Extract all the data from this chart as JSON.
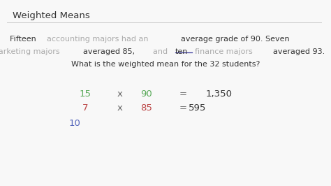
{
  "title": "Weighted Means",
  "bg_color": "#f8f8f8",
  "title_color": "#333333",
  "divider_color": "#cccccc",
  "para_line1": [
    {
      "text": "Fifteen ",
      "color": "#333333"
    },
    {
      "text": "accounting majors had an ",
      "color": "#aaaaaa"
    },
    {
      "text": "average grade of 90. Seven",
      "color": "#333333"
    }
  ],
  "para_line2": [
    {
      "text": "marketing majors ",
      "color": "#aaaaaa"
    },
    {
      "text": "averaged 85, ",
      "color": "#333333"
    },
    {
      "text": "and ",
      "color": "#aaaaaa"
    },
    {
      "text": "ten",
      "color": "#333333",
      "underline": true
    },
    {
      "text": " ",
      "color": "#333333"
    },
    {
      "text": "finance majors ",
      "color": "#aaaaaa"
    },
    {
      "text": "averaged 93.",
      "color": "#333333"
    }
  ],
  "para_line3": "What is the weighted mean for the 32 students?",
  "para_line3_color": "#333333",
  "row1_num1": "15",
  "row1_num1_color": "#5aaa5a",
  "row1_x": "x",
  "row1_x_color": "#666666",
  "row1_num2": "90",
  "row1_num2_color": "#5aaa5a",
  "row1_eq": "=",
  "row1_eq_color": "#666666",
  "row1_result": "1,350",
  "row1_result_color": "#333333",
  "row2_num1": "7",
  "row2_num1_color": "#bb4444",
  "row2_x": "x",
  "row2_x_color": "#666666",
  "row2_num2": "85",
  "row2_num2_color": "#bb4444",
  "row2_eq": "=",
  "row2_eq_color": "#666666",
  "row2_result": "595",
  "row2_result_color": "#333333",
  "row3_num1": "10",
  "row3_num1_color": "#5566bb",
  "underline_color": "#333399",
  "fs_title": 9.5,
  "fs_para": 8.0,
  "fs_calc": 9.5
}
